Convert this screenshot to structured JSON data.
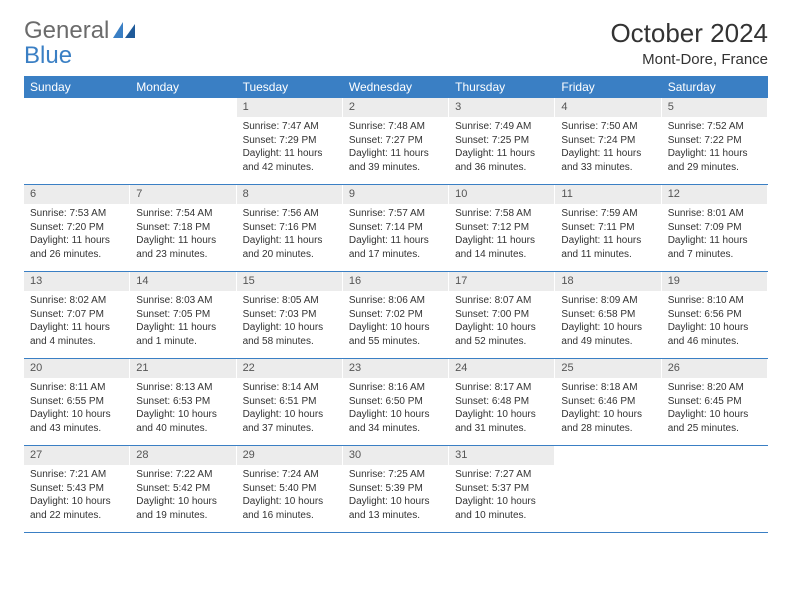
{
  "logo": {
    "part1": "General",
    "part2": "Blue"
  },
  "title": "October 2024",
  "location": "Mont-Dore, France",
  "colors": {
    "header_bg": "#3a7fc4",
    "header_text": "#ffffff",
    "daynum_bg": "#ececec",
    "daynum_text": "#555555",
    "body_text": "#333333",
    "rule": "#3a7fc4",
    "page_bg": "#ffffff"
  },
  "typography": {
    "title_fontsize": 26,
    "location_fontsize": 15,
    "weekday_fontsize": 12,
    "daynum_fontsize": 11,
    "body_fontsize": 10
  },
  "weekdays": [
    "Sunday",
    "Monday",
    "Tuesday",
    "Wednesday",
    "Thursday",
    "Friday",
    "Saturday"
  ],
  "weeks": [
    [
      {
        "n": "",
        "sunrise": "",
        "sunset": "",
        "daylight": ""
      },
      {
        "n": "",
        "sunrise": "",
        "sunset": "",
        "daylight": ""
      },
      {
        "n": "1",
        "sunrise": "Sunrise: 7:47 AM",
        "sunset": "Sunset: 7:29 PM",
        "daylight": "Daylight: 11 hours and 42 minutes."
      },
      {
        "n": "2",
        "sunrise": "Sunrise: 7:48 AM",
        "sunset": "Sunset: 7:27 PM",
        "daylight": "Daylight: 11 hours and 39 minutes."
      },
      {
        "n": "3",
        "sunrise": "Sunrise: 7:49 AM",
        "sunset": "Sunset: 7:25 PM",
        "daylight": "Daylight: 11 hours and 36 minutes."
      },
      {
        "n": "4",
        "sunrise": "Sunrise: 7:50 AM",
        "sunset": "Sunset: 7:24 PM",
        "daylight": "Daylight: 11 hours and 33 minutes."
      },
      {
        "n": "5",
        "sunrise": "Sunrise: 7:52 AM",
        "sunset": "Sunset: 7:22 PM",
        "daylight": "Daylight: 11 hours and 29 minutes."
      }
    ],
    [
      {
        "n": "6",
        "sunrise": "Sunrise: 7:53 AM",
        "sunset": "Sunset: 7:20 PM",
        "daylight": "Daylight: 11 hours and 26 minutes."
      },
      {
        "n": "7",
        "sunrise": "Sunrise: 7:54 AM",
        "sunset": "Sunset: 7:18 PM",
        "daylight": "Daylight: 11 hours and 23 minutes."
      },
      {
        "n": "8",
        "sunrise": "Sunrise: 7:56 AM",
        "sunset": "Sunset: 7:16 PM",
        "daylight": "Daylight: 11 hours and 20 minutes."
      },
      {
        "n": "9",
        "sunrise": "Sunrise: 7:57 AM",
        "sunset": "Sunset: 7:14 PM",
        "daylight": "Daylight: 11 hours and 17 minutes."
      },
      {
        "n": "10",
        "sunrise": "Sunrise: 7:58 AM",
        "sunset": "Sunset: 7:12 PM",
        "daylight": "Daylight: 11 hours and 14 minutes."
      },
      {
        "n": "11",
        "sunrise": "Sunrise: 7:59 AM",
        "sunset": "Sunset: 7:11 PM",
        "daylight": "Daylight: 11 hours and 11 minutes."
      },
      {
        "n": "12",
        "sunrise": "Sunrise: 8:01 AM",
        "sunset": "Sunset: 7:09 PM",
        "daylight": "Daylight: 11 hours and 7 minutes."
      }
    ],
    [
      {
        "n": "13",
        "sunrise": "Sunrise: 8:02 AM",
        "sunset": "Sunset: 7:07 PM",
        "daylight": "Daylight: 11 hours and 4 minutes."
      },
      {
        "n": "14",
        "sunrise": "Sunrise: 8:03 AM",
        "sunset": "Sunset: 7:05 PM",
        "daylight": "Daylight: 11 hours and 1 minute."
      },
      {
        "n": "15",
        "sunrise": "Sunrise: 8:05 AM",
        "sunset": "Sunset: 7:03 PM",
        "daylight": "Daylight: 10 hours and 58 minutes."
      },
      {
        "n": "16",
        "sunrise": "Sunrise: 8:06 AM",
        "sunset": "Sunset: 7:02 PM",
        "daylight": "Daylight: 10 hours and 55 minutes."
      },
      {
        "n": "17",
        "sunrise": "Sunrise: 8:07 AM",
        "sunset": "Sunset: 7:00 PM",
        "daylight": "Daylight: 10 hours and 52 minutes."
      },
      {
        "n": "18",
        "sunrise": "Sunrise: 8:09 AM",
        "sunset": "Sunset: 6:58 PM",
        "daylight": "Daylight: 10 hours and 49 minutes."
      },
      {
        "n": "19",
        "sunrise": "Sunrise: 8:10 AM",
        "sunset": "Sunset: 6:56 PM",
        "daylight": "Daylight: 10 hours and 46 minutes."
      }
    ],
    [
      {
        "n": "20",
        "sunrise": "Sunrise: 8:11 AM",
        "sunset": "Sunset: 6:55 PM",
        "daylight": "Daylight: 10 hours and 43 minutes."
      },
      {
        "n": "21",
        "sunrise": "Sunrise: 8:13 AM",
        "sunset": "Sunset: 6:53 PM",
        "daylight": "Daylight: 10 hours and 40 minutes."
      },
      {
        "n": "22",
        "sunrise": "Sunrise: 8:14 AM",
        "sunset": "Sunset: 6:51 PM",
        "daylight": "Daylight: 10 hours and 37 minutes."
      },
      {
        "n": "23",
        "sunrise": "Sunrise: 8:16 AM",
        "sunset": "Sunset: 6:50 PM",
        "daylight": "Daylight: 10 hours and 34 minutes."
      },
      {
        "n": "24",
        "sunrise": "Sunrise: 8:17 AM",
        "sunset": "Sunset: 6:48 PM",
        "daylight": "Daylight: 10 hours and 31 minutes."
      },
      {
        "n": "25",
        "sunrise": "Sunrise: 8:18 AM",
        "sunset": "Sunset: 6:46 PM",
        "daylight": "Daylight: 10 hours and 28 minutes."
      },
      {
        "n": "26",
        "sunrise": "Sunrise: 8:20 AM",
        "sunset": "Sunset: 6:45 PM",
        "daylight": "Daylight: 10 hours and 25 minutes."
      }
    ],
    [
      {
        "n": "27",
        "sunrise": "Sunrise: 7:21 AM",
        "sunset": "Sunset: 5:43 PM",
        "daylight": "Daylight: 10 hours and 22 minutes."
      },
      {
        "n": "28",
        "sunrise": "Sunrise: 7:22 AM",
        "sunset": "Sunset: 5:42 PM",
        "daylight": "Daylight: 10 hours and 19 minutes."
      },
      {
        "n": "29",
        "sunrise": "Sunrise: 7:24 AM",
        "sunset": "Sunset: 5:40 PM",
        "daylight": "Daylight: 10 hours and 16 minutes."
      },
      {
        "n": "30",
        "sunrise": "Sunrise: 7:25 AM",
        "sunset": "Sunset: 5:39 PM",
        "daylight": "Daylight: 10 hours and 13 minutes."
      },
      {
        "n": "31",
        "sunrise": "Sunrise: 7:27 AM",
        "sunset": "Sunset: 5:37 PM",
        "daylight": "Daylight: 10 hours and 10 minutes."
      },
      {
        "n": "",
        "sunrise": "",
        "sunset": "",
        "daylight": ""
      },
      {
        "n": "",
        "sunrise": "",
        "sunset": "",
        "daylight": ""
      }
    ]
  ]
}
